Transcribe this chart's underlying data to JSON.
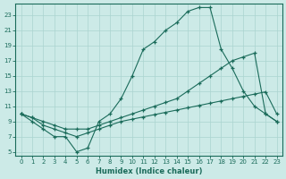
{
  "xlabel": "Humidex (Indice chaleur)",
  "bg_color": "#cceae7",
  "grid_color": "#aad4d0",
  "line_color": "#1a6b5a",
  "marker": "+",
  "xlim": [
    -0.5,
    23.5
  ],
  "ylim": [
    4.5,
    24.5
  ],
  "xticks": [
    0,
    1,
    2,
    3,
    4,
    5,
    6,
    7,
    8,
    9,
    10,
    11,
    12,
    13,
    14,
    15,
    16,
    17,
    18,
    19,
    20,
    21,
    22,
    23
  ],
  "yticks": [
    5,
    7,
    9,
    11,
    13,
    15,
    17,
    19,
    21,
    23
  ],
  "series": [
    {
      "x": [
        0,
        1,
        2,
        3,
        4,
        5,
        6,
        7,
        8,
        9,
        10,
        11,
        12,
        13,
        14,
        15,
        16,
        17,
        18,
        19,
        20,
        21,
        22,
        23
      ],
      "y": [
        10,
        9,
        8,
        7,
        7,
        5,
        5.5,
        9,
        10,
        12,
        15,
        18.5,
        19.5,
        21,
        22,
        23.5,
        24,
        24,
        18.5,
        16,
        13,
        11,
        10,
        9
      ]
    },
    {
      "x": [
        0,
        1,
        2,
        3,
        4,
        5,
        6,
        7,
        8,
        9,
        10,
        11,
        12,
        13,
        14,
        15,
        16,
        17,
        18,
        19,
        20,
        21,
        22,
        23
      ],
      "y": [
        10,
        9.5,
        9,
        8.5,
        8,
        8,
        8,
        8.5,
        9,
        9.5,
        10,
        10.5,
        11,
        11.5,
        12,
        13,
        14,
        15,
        16,
        17,
        17.5,
        18,
        10,
        9
      ]
    },
    {
      "x": [
        0,
        1,
        2,
        3,
        4,
        5,
        6,
        7,
        8,
        9,
        10,
        11,
        12,
        13,
        14,
        15,
        16,
        17,
        18,
        19,
        20,
        21,
        22,
        23
      ],
      "y": [
        10,
        9.5,
        8.5,
        8,
        7.5,
        7,
        7.5,
        8,
        8.5,
        9,
        9.3,
        9.6,
        9.9,
        10.2,
        10.5,
        10.8,
        11.1,
        11.4,
        11.7,
        12,
        12.3,
        12.6,
        12.9,
        10
      ]
    }
  ]
}
